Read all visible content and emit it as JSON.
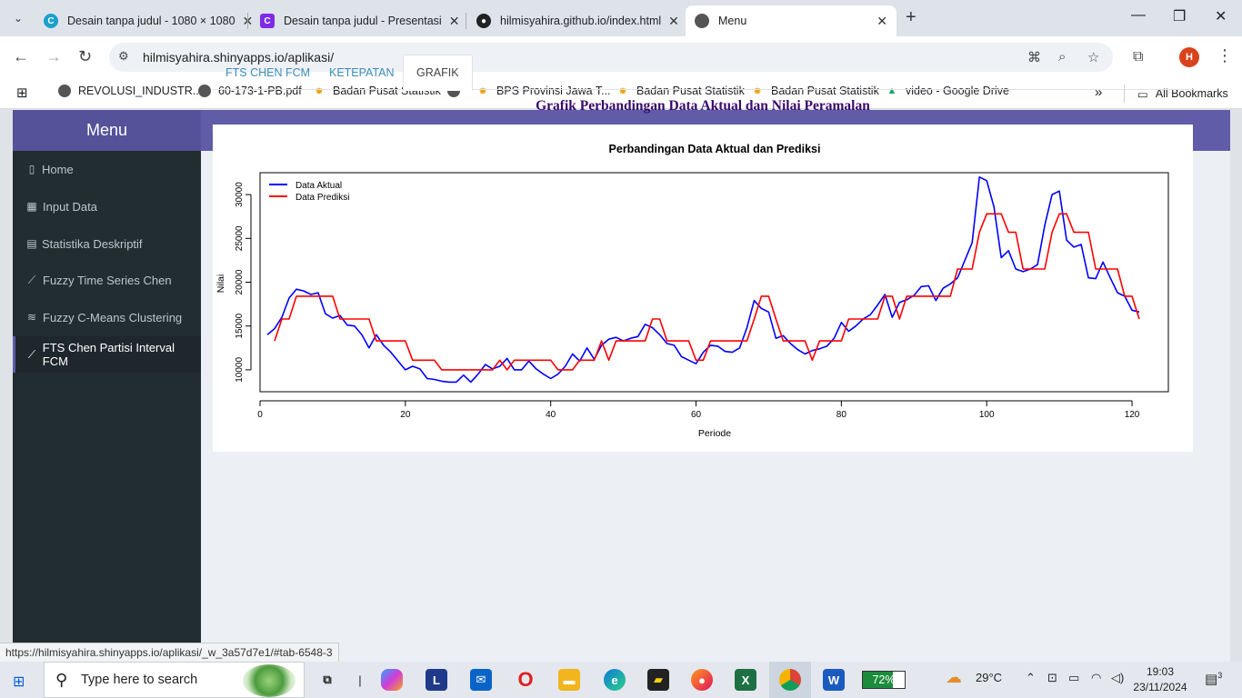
{
  "browser": {
    "tabs": [
      {
        "title": "Desain tanpa judul - 1080 × 1080",
        "favicon": "canva-icon",
        "color": "#1aa0cc"
      },
      {
        "title": "Desain tanpa judul - Presentasi",
        "favicon": "canva-icon",
        "color": "#7d2ae8"
      },
      {
        "title": "hilmisyahira.github.io/index.html",
        "favicon": "github-icon",
        "color": "#222222"
      },
      {
        "title": "Menu",
        "favicon": "globe-icon",
        "color": "#555555"
      }
    ],
    "url": "hilmisyahira.shinyapps.io/aplikasi/",
    "profile_initial": "H",
    "bookmarks": [
      "REVOLUSI_INDUSTR...",
      "60-173-1-PB.pdf",
      "Badan Pusat Statistik",
      "BPS Provinsi Jawa T...",
      "Badan Pusat Statistik",
      "Badan Pusat Statistik",
      "video - Google Drive"
    ],
    "all_bookmarks": "All Bookmarks",
    "status_url": "https://hilmisyahira.shinyapps.io/aplikasi/_w_3a57d7e1/#tab-6548-3"
  },
  "app": {
    "brand": "Menu",
    "accent": "#605ca8",
    "sidebar": [
      {
        "label": "Home",
        "icon": "clipboard-icon"
      },
      {
        "label": "Input Data",
        "icon": "table-icon"
      },
      {
        "label": "Statistika Deskriptif",
        "icon": "calculator-icon"
      },
      {
        "label": "Fuzzy Time Series Chen",
        "icon": "line-chart-icon"
      },
      {
        "label": "Fuzzy C-Means Clustering",
        "icon": "layers-icon"
      },
      {
        "label": "FTS Chen Partisi Interval FCM",
        "icon": "line-chart-icon",
        "active": true
      }
    ],
    "tabs": [
      "FTS CHEN FCM",
      "KETEPATAN",
      "GRAFIK"
    ],
    "active_tab": "GRAFIK",
    "section_title": "Grafik Perbandingan Data Aktual dan Nilai Peramalan"
  },
  "chart_data": {
    "type": "line",
    "title": "Perbandingan Data Aktual dan Prediksi",
    "xlabel": "Periode",
    "ylabel": "Nilai",
    "xlim": [
      0,
      125
    ],
    "ylim": [
      7500,
      32500
    ],
    "xticks": [
      0,
      20,
      40,
      60,
      80,
      100,
      120
    ],
    "yticks": [
      10000,
      15000,
      20000,
      25000,
      30000
    ],
    "legend_position": "top-left",
    "series": [
      {
        "name": "Data Aktual",
        "color": "#0000ff",
        "x_start": 1,
        "values": [
          14000,
          14700,
          16000,
          18200,
          19200,
          19000,
          18600,
          18800,
          16400,
          15900,
          16200,
          15100,
          15000,
          14000,
          12500,
          14000,
          12800,
          12000,
          11000,
          10000,
          10400,
          10100,
          9000,
          8900,
          8700,
          8600,
          8600,
          9400,
          8600,
          9500,
          10600,
          10100,
          10400,
          11300,
          10000,
          10000,
          11000,
          10100,
          9500,
          9000,
          9500,
          10400,
          11800,
          11000,
          12500,
          11200,
          12800,
          13500,
          13700,
          13300,
          13600,
          13800,
          15200,
          14800,
          14000,
          13000,
          12800,
          11500,
          11100,
          10700,
          12000,
          12800,
          12700,
          12100,
          12000,
          12500,
          14800,
          17900,
          17000,
          16600,
          13600,
          13900,
          13000,
          12300,
          11800,
          12200,
          12400,
          12700,
          13600,
          15400,
          14400,
          15000,
          15800,
          16300,
          17400,
          18600,
          16000,
          17700,
          18000,
          18500,
          19500,
          19600,
          17900,
          19300,
          19800,
          20500,
          22500,
          24500,
          32000,
          31600,
          28600,
          22800,
          23600,
          21500,
          21200,
          21500,
          22000,
          26500,
          30000,
          30400,
          24800,
          24000,
          24300,
          20500,
          20400,
          22300,
          20500,
          18800,
          18400,
          16800,
          16600
        ]
      },
      {
        "name": "Data Prediksi",
        "color": "#ff0000",
        "x_start": 2,
        "values": [
          13300,
          15800,
          15800,
          18400,
          18400,
          18400,
          18400,
          18400,
          18400,
          15800,
          15800,
          15800,
          15800,
          15800,
          13300,
          13300,
          13300,
          13300,
          13300,
          11100,
          11100,
          11100,
          11100,
          10000,
          10000,
          10000,
          10000,
          10000,
          10000,
          10000,
          10000,
          11100,
          10000,
          11100,
          11100,
          11100,
          11100,
          11100,
          11100,
          10000,
          10000,
          10000,
          11100,
          11100,
          11100,
          13300,
          11100,
          13300,
          13300,
          13300,
          13300,
          13300,
          15800,
          15800,
          13300,
          13300,
          13300,
          13300,
          11100,
          11100,
          13300,
          13300,
          13300,
          13300,
          13300,
          13300,
          15800,
          18400,
          18400,
          15800,
          13300,
          13300,
          13300,
          13300,
          11100,
          13300,
          13300,
          13300,
          13300,
          15800,
          15800,
          15800,
          15800,
          15800,
          18400,
          18400,
          15800,
          18400,
          18400,
          18400,
          18400,
          18400,
          18400,
          18400,
          21500,
          21500,
          21500,
          25700,
          27800,
          27800,
          27800,
          25700,
          25700,
          21500,
          21500,
          21500,
          21500,
          25700,
          27800,
          27800,
          25700,
          25700,
          25700,
          21500,
          21500,
          21500,
          21500,
          18400,
          18400,
          15800
        ]
      }
    ]
  },
  "taskbar": {
    "search_placeholder": "Type here to search",
    "battery": "72%",
    "weather": "29°C",
    "time": "19:03",
    "date": "23/11/2024",
    "notifications": "3"
  }
}
